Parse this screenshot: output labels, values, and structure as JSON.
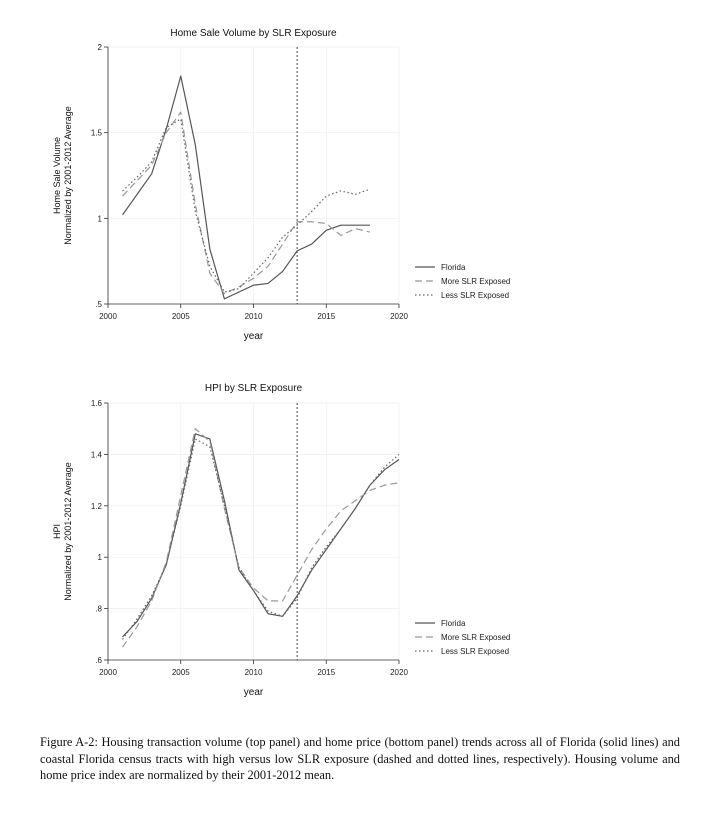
{
  "figure": {
    "caption": "Figure A-2: Housing transaction volume (top panel) and home price (bottom panel) trends across all of Florida (solid lines) and coastal Florida census tracts with high versus low SLR exposure (dashed and dotted lines, respectively). Housing volume and home price index are normalized by their 2001-2012 mean."
  },
  "chart_data": [
    {
      "type": "line",
      "title": "Home Sale Volume by SLR Exposure",
      "xlabel": "year",
      "ylabel_line1": "Home Sale Volume",
      "ylabel_line2": "Normalized by 2001-2012 Average",
      "xlim": [
        2000,
        2020
      ],
      "ylim": [
        0.5,
        2
      ],
      "xticks": [
        2000,
        2005,
        2010,
        2015,
        2020
      ],
      "yticks": [
        0.5,
        1,
        1.5,
        2
      ],
      "ytick_labels": [
        ".5",
        "1",
        "1.5",
        "2"
      ],
      "vline": 2013,
      "grid": true,
      "legend_position": "right",
      "series": [
        {
          "name": "Florida",
          "style": "solid",
          "color": "#555555",
          "x": [
            2001,
            2002,
            2003,
            2004,
            2005,
            2006,
            2007,
            2008,
            2009,
            2010,
            2011,
            2012,
            2013,
            2014,
            2015,
            2016,
            2017,
            2018
          ],
          "values": [
            1.02,
            1.14,
            1.26,
            1.52,
            1.83,
            1.43,
            0.82,
            0.53,
            0.57,
            0.61,
            0.62,
            0.69,
            0.81,
            0.85,
            0.93,
            0.96,
            0.96,
            0.96
          ]
        },
        {
          "name": "More SLR Exposed",
          "style": "dashed",
          "color": "#999999",
          "x": [
            2001,
            2002,
            2003,
            2004,
            2005,
            2006,
            2007,
            2008,
            2009,
            2010,
            2011,
            2012,
            2013,
            2014,
            2015,
            2016,
            2017,
            2018
          ],
          "values": [
            1.13,
            1.22,
            1.31,
            1.5,
            1.62,
            1.08,
            0.68,
            0.56,
            0.6,
            0.65,
            0.72,
            0.85,
            0.98,
            0.98,
            0.97,
            0.9,
            0.94,
            0.92
          ]
        },
        {
          "name": "Less SLR Exposed",
          "style": "dotted",
          "color": "#666666",
          "x": [
            2001,
            2002,
            2003,
            2004,
            2005,
            2006,
            2007,
            2008,
            2009,
            2010,
            2011,
            2012,
            2013,
            2014,
            2015,
            2016,
            2017,
            2018
          ],
          "values": [
            1.16,
            1.24,
            1.33,
            1.53,
            1.58,
            1.04,
            0.72,
            0.57,
            0.59,
            0.68,
            0.77,
            0.89,
            0.96,
            1.04,
            1.13,
            1.16,
            1.14,
            1.17
          ]
        }
      ]
    },
    {
      "type": "line",
      "title": "HPI by SLR Exposure",
      "xlabel": "year",
      "ylabel_line1": "HPI",
      "ylabel_line2": "Normalized by 2001-2012 Average",
      "xlim": [
        2000,
        2020
      ],
      "ylim": [
        0.6,
        1.6
      ],
      "xticks": [
        2000,
        2005,
        2010,
        2015,
        2020
      ],
      "yticks": [
        0.6,
        0.8,
        1,
        1.2,
        1.4,
        1.6
      ],
      "ytick_labels": [
        ".6",
        ".8",
        "1",
        "1.2",
        "1.4",
        "1.6"
      ],
      "vline": 2013,
      "grid": true,
      "legend_position": "right",
      "series": [
        {
          "name": "Florida",
          "style": "solid",
          "color": "#555555",
          "x": [
            2001,
            2002,
            2003,
            2004,
            2005,
            2006,
            2007,
            2008,
            2009,
            2010,
            2011,
            2012,
            2013,
            2014,
            2015,
            2016,
            2017,
            2018,
            2019,
            2020
          ],
          "values": [
            0.69,
            0.75,
            0.84,
            0.97,
            1.21,
            1.48,
            1.46,
            1.22,
            0.95,
            0.87,
            0.78,
            0.77,
            0.85,
            0.95,
            1.03,
            1.11,
            1.19,
            1.28,
            1.34,
            1.38
          ]
        },
        {
          "name": "More SLR Exposed",
          "style": "dashed",
          "color": "#999999",
          "x": [
            2001,
            2002,
            2003,
            2004,
            2005,
            2006,
            2007,
            2008,
            2009,
            2010,
            2011,
            2012,
            2013,
            2014,
            2015,
            2016,
            2017,
            2018,
            2019,
            2020
          ],
          "values": [
            0.65,
            0.73,
            0.83,
            0.98,
            1.24,
            1.5,
            1.45,
            1.19,
            0.96,
            0.88,
            0.83,
            0.83,
            0.93,
            1.03,
            1.11,
            1.18,
            1.22,
            1.26,
            1.28,
            1.29
          ]
        },
        {
          "name": "Less SLR Exposed",
          "style": "dotted",
          "color": "#666666",
          "x": [
            2001,
            2002,
            2003,
            2004,
            2005,
            2006,
            2007,
            2008,
            2009,
            2010,
            2011,
            2012,
            2013,
            2014,
            2015,
            2016,
            2017,
            2018,
            2019,
            2020
          ],
          "values": [
            0.68,
            0.76,
            0.85,
            0.97,
            1.2,
            1.46,
            1.43,
            1.2,
            0.96,
            0.87,
            0.79,
            0.77,
            0.84,
            0.96,
            1.04,
            1.11,
            1.19,
            1.28,
            1.35,
            1.4
          ]
        }
      ]
    }
  ]
}
